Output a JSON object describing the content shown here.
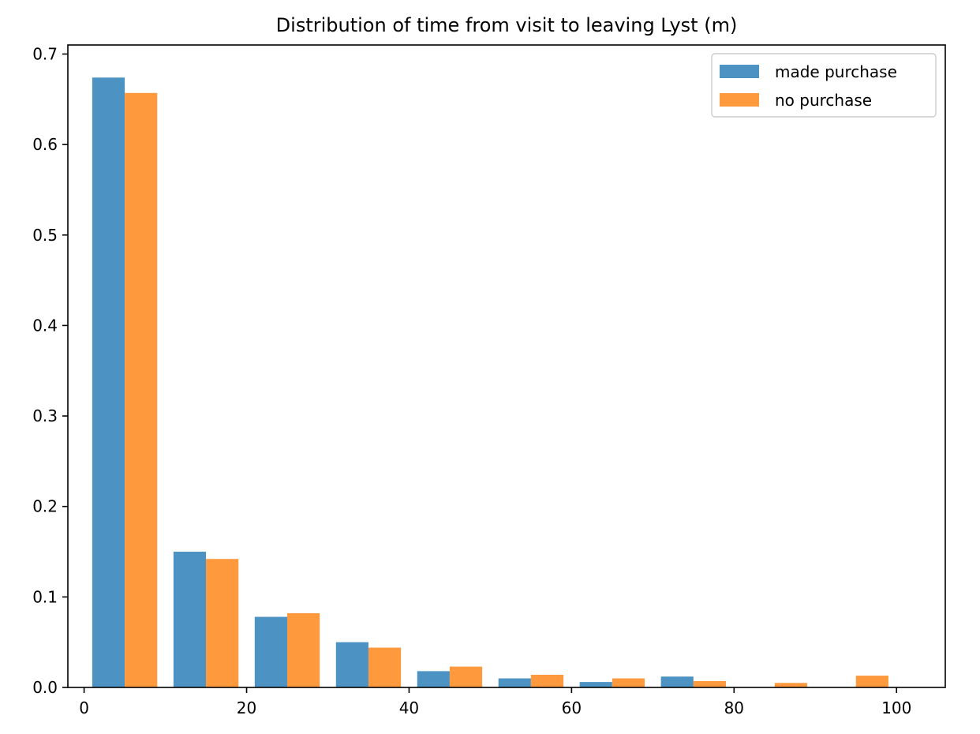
{
  "chart_data": {
    "type": "bar",
    "title": "Distribution of time from visit to leaving Lyst (m)",
    "xlabel": "",
    "ylabel": "",
    "categories": [
      5,
      15,
      25,
      35,
      45,
      55,
      65,
      75,
      85,
      95
    ],
    "bin_edges": [
      0,
      10,
      20,
      30,
      40,
      50,
      60,
      70,
      80,
      90,
      100
    ],
    "series": [
      {
        "name": "made purchase",
        "color": "#4c92c3",
        "values": [
          0.674,
          0.15,
          0.078,
          0.05,
          0.018,
          0.01,
          0.006,
          0.012,
          0.0,
          0.0
        ]
      },
      {
        "name": "no purchase",
        "color": "#ff993e",
        "values": [
          0.657,
          0.142,
          0.082,
          0.044,
          0.023,
          0.014,
          0.01,
          0.007,
          0.005,
          0.013
        ]
      }
    ],
    "xlim": [
      -2,
      106
    ],
    "ylim": [
      0,
      0.71
    ],
    "x_ticks": [
      "0",
      "20",
      "40",
      "60",
      "80",
      "100"
    ],
    "y_ticks": [
      "0.0",
      "0.1",
      "0.2",
      "0.3",
      "0.4",
      "0.5",
      "0.6",
      "0.7"
    ],
    "grid": false,
    "legend_position": "top-right"
  }
}
